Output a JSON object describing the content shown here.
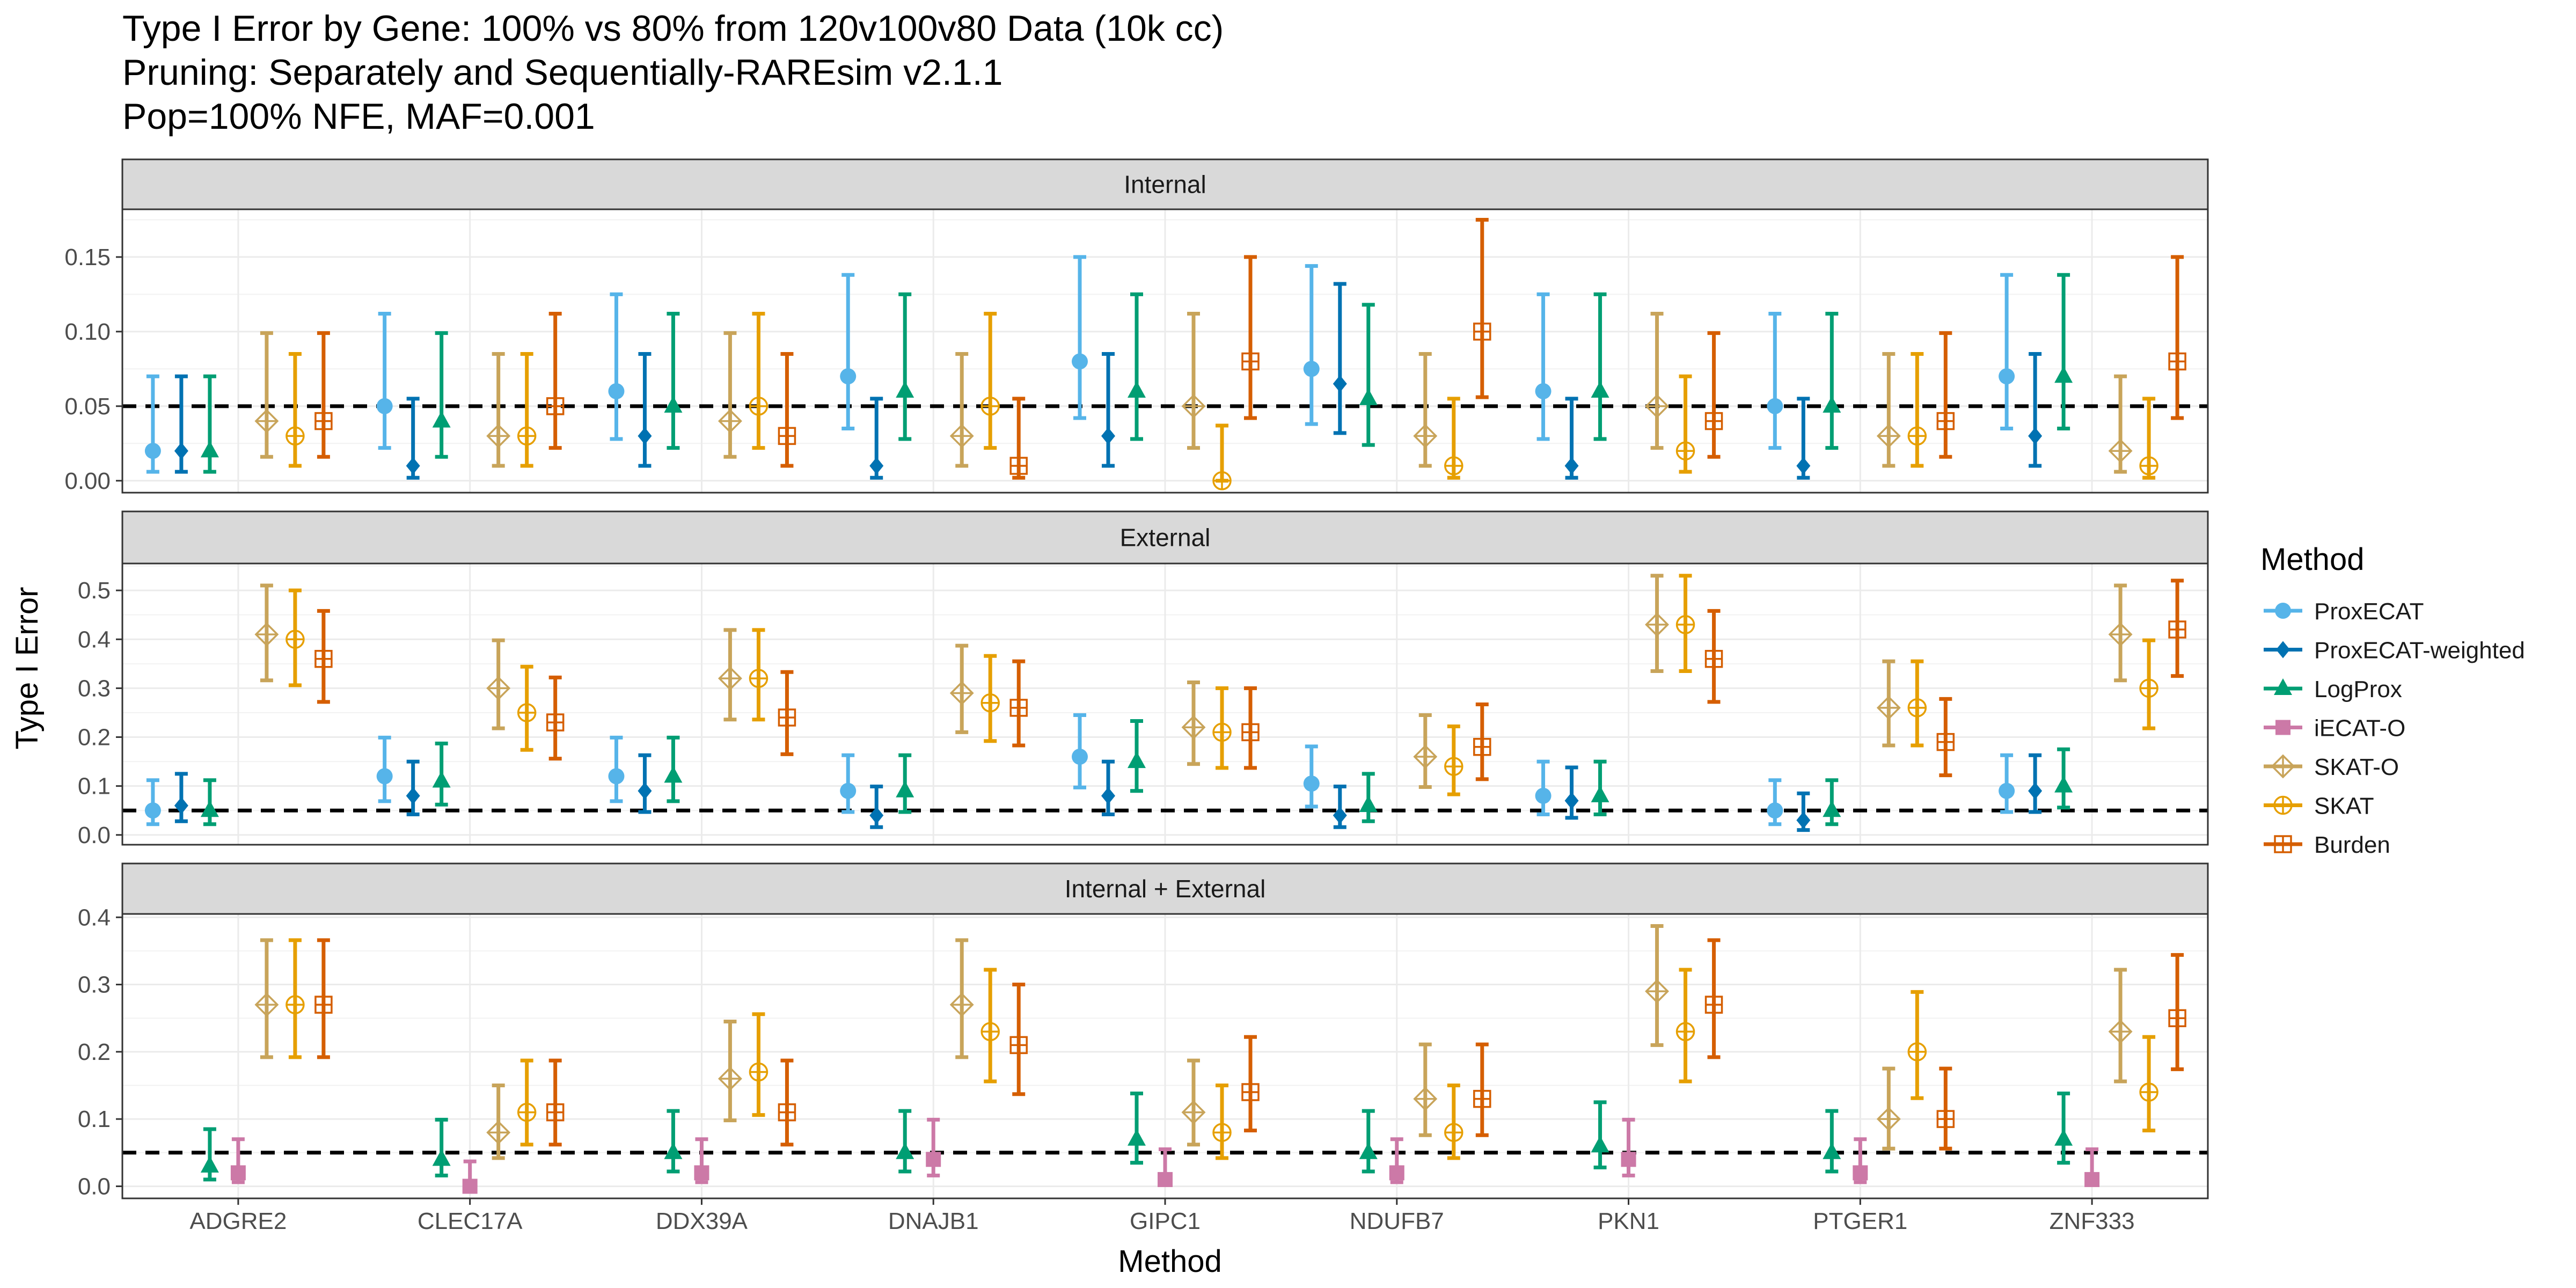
{
  "colors": {
    "ProxECAT": "#56B4E9",
    "ProxECAT-weighted": "#0072B2",
    "LogProx": "#009E73",
    "iECAT-O": "#CC79A7",
    "SKAT-O": "#C8A45A",
    "SKAT": "#E69F00",
    "Burden": "#D55E00",
    "strip_bg": "#D9D9D9",
    "panel_border": "#333333",
    "grid": "#EBEBEB"
  },
  "chart_data": {
    "type": "scatter",
    "title": [
      "Type I Error by Gene: 100% vs 80% from 120v100v80 Data (10k cc)",
      "Pruning: Separately and Sequentially-RAREsim v2.1.1",
      "Pop=100% NFE, MAF=0.001"
    ],
    "xlabel": "Method",
    "ylabel": "Type I Error",
    "reference_line": 0.05,
    "categories": [
      "ADGRE2",
      "CLEC17A",
      "DDX39A",
      "DNAJB1",
      "GIPC1",
      "NDUFB7",
      "PKN1",
      "PTGER1",
      "ZNF333"
    ],
    "legend": {
      "title": "Method",
      "position": "right",
      "items": [
        {
          "name": "ProxECAT",
          "shape": "circle"
        },
        {
          "name": "ProxECAT-weighted",
          "shape": "diamond"
        },
        {
          "name": "LogProx",
          "shape": "triangle"
        },
        {
          "name": "iECAT-O",
          "shape": "square"
        },
        {
          "name": "SKAT-O",
          "shape": "diamond-open"
        },
        {
          "name": "SKAT",
          "shape": "circle-plus"
        },
        {
          "name": "Burden",
          "shape": "square-plus"
        }
      ]
    },
    "panels": [
      {
        "label": "Internal",
        "ylim": [
          -0.008,
          0.182
        ],
        "yticks": [
          0.0,
          0.05,
          0.1,
          0.15
        ],
        "ytick_labels": [
          "0.00",
          "0.05",
          "0.10",
          "0.15"
        ],
        "series": [
          {
            "name": "ProxECAT",
            "values": [
              0.02,
              0.05,
              0.06,
              0.07,
              0.08,
              0.075,
              0.06,
              0.05,
              0.07
            ],
            "lower": [
              0.006,
              0.022,
              0.028,
              0.035,
              0.042,
              0.038,
              0.028,
              0.022,
              0.035
            ],
            "upper": [
              0.07,
              0.112,
              0.125,
              0.138,
              0.15,
              0.144,
              0.125,
              0.112,
              0.138
            ]
          },
          {
            "name": "ProxECAT-weighted",
            "values": [
              0.02,
              0.01,
              0.03,
              0.01,
              0.03,
              0.065,
              0.01,
              0.01,
              0.03
            ],
            "lower": [
              0.006,
              0.002,
              0.01,
              0.002,
              0.01,
              0.032,
              0.002,
              0.002,
              0.01
            ],
            "upper": [
              0.07,
              0.055,
              0.085,
              0.055,
              0.085,
              0.132,
              0.055,
              0.055,
              0.085
            ]
          },
          {
            "name": "LogProx",
            "values": [
              0.02,
              0.04,
              0.05,
              0.06,
              0.06,
              0.055,
              0.06,
              0.05,
              0.07
            ],
            "lower": [
              0.006,
              0.016,
              0.022,
              0.028,
              0.028,
              0.024,
              0.028,
              0.022,
              0.035
            ],
            "upper": [
              0.07,
              0.099,
              0.112,
              0.125,
              0.125,
              0.118,
              0.125,
              0.112,
              0.138
            ]
          },
          {
            "name": "SKAT-O",
            "values": [
              0.04,
              0.03,
              0.04,
              0.03,
              0.05,
              0.03,
              0.05,
              0.03,
              0.02
            ],
            "lower": [
              0.016,
              0.01,
              0.016,
              0.01,
              0.022,
              0.01,
              0.022,
              0.01,
              0.006
            ],
            "upper": [
              0.099,
              0.085,
              0.099,
              0.085,
              0.112,
              0.085,
              0.112,
              0.085,
              0.07
            ]
          },
          {
            "name": "SKAT",
            "values": [
              0.03,
              0.03,
              0.05,
              0.05,
              0.0,
              0.01,
              0.02,
              0.03,
              0.01
            ],
            "lower": [
              0.01,
              0.01,
              0.022,
              0.022,
              0.0,
              0.002,
              0.006,
              0.01,
              0.002
            ],
            "upper": [
              0.085,
              0.085,
              0.112,
              0.112,
              0.037,
              0.055,
              0.07,
              0.085,
              0.055
            ]
          },
          {
            "name": "Burden",
            "values": [
              0.04,
              0.05,
              0.03,
              0.01,
              0.08,
              0.1,
              0.04,
              0.04,
              0.08
            ],
            "lower": [
              0.016,
              0.022,
              0.01,
              0.002,
              0.042,
              0.056,
              0.016,
              0.016,
              0.042
            ],
            "upper": [
              0.099,
              0.112,
              0.085,
              0.055,
              0.15,
              0.175,
              0.099,
              0.099,
              0.15
            ]
          }
        ]
      },
      {
        "label": "External",
        "ylim": [
          -0.02,
          0.555
        ],
        "yticks": [
          0.0,
          0.1,
          0.2,
          0.3,
          0.4,
          0.5
        ],
        "ytick_labels": [
          "0.0",
          "0.1",
          "0.2",
          "0.3",
          "0.4",
          "0.5"
        ],
        "series": [
          {
            "name": "ProxECAT",
            "values": [
              0.05,
              0.12,
              0.12,
              0.09,
              0.16,
              0.105,
              0.08,
              0.05,
              0.09
            ],
            "lower": [
              0.022,
              0.069,
              0.069,
              0.047,
              0.097,
              0.058,
              0.042,
              0.022,
              0.047
            ],
            "upper": [
              0.112,
              0.199,
              0.199,
              0.163,
              0.245,
              0.181,
              0.15,
              0.112,
              0.163
            ]
          },
          {
            "name": "ProxECAT-weighted",
            "values": [
              0.06,
              0.08,
              0.09,
              0.04,
              0.08,
              0.04,
              0.07,
              0.03,
              0.09
            ],
            "lower": [
              0.028,
              0.042,
              0.047,
              0.016,
              0.042,
              0.016,
              0.035,
              0.01,
              0.047
            ],
            "upper": [
              0.125,
              0.15,
              0.163,
              0.099,
              0.15,
              0.099,
              0.138,
              0.085,
              0.163
            ]
          },
          {
            "name": "LogProx",
            "values": [
              0.05,
              0.11,
              0.12,
              0.09,
              0.15,
              0.06,
              0.08,
              0.05,
              0.1
            ],
            "lower": [
              0.022,
              0.062,
              0.069,
              0.047,
              0.09,
              0.028,
              0.042,
              0.022,
              0.056
            ],
            "upper": [
              0.112,
              0.187,
              0.199,
              0.163,
              0.233,
              0.125,
              0.15,
              0.112,
              0.175
            ]
          },
          {
            "name": "SKAT-O",
            "values": [
              0.41,
              0.3,
              0.32,
              0.29,
              0.22,
              0.16,
              0.43,
              0.26,
              0.41
            ],
            "lower": [
              0.316,
              0.218,
              0.236,
              0.21,
              0.145,
              0.098,
              0.335,
              0.183,
              0.316
            ],
            "upper": [
              0.51,
              0.398,
              0.419,
              0.387,
              0.312,
              0.245,
              0.53,
              0.355,
              0.51
            ]
          },
          {
            "name": "SKAT",
            "values": [
              0.4,
              0.25,
              0.32,
              0.27,
              0.21,
              0.14,
              0.43,
              0.26,
              0.3
            ],
            "lower": [
              0.306,
              0.174,
              0.236,
              0.192,
              0.137,
              0.083,
              0.335,
              0.183,
              0.218
            ],
            "upper": [
              0.5,
              0.344,
              0.419,
              0.366,
              0.3,
              0.222,
              0.53,
              0.355,
              0.398
            ]
          },
          {
            "name": "Burden",
            "values": [
              0.36,
              0.23,
              0.24,
              0.26,
              0.21,
              0.18,
              0.36,
              0.19,
              0.42
            ],
            "lower": [
              0.272,
              0.156,
              0.165,
              0.183,
              0.137,
              0.114,
              0.272,
              0.122,
              0.325
            ],
            "upper": [
              0.458,
              0.322,
              0.333,
              0.355,
              0.3,
              0.267,
              0.458,
              0.278,
              0.52
            ]
          }
        ]
      },
      {
        "label": "Internal + External",
        "ylim": [
          -0.018,
          0.405
        ],
        "yticks": [
          0.0,
          0.1,
          0.2,
          0.3,
          0.4
        ],
        "ytick_labels": [
          "0.0",
          "0.1",
          "0.2",
          "0.3",
          "0.4"
        ],
        "series": [
          {
            "name": "LogProx",
            "values": [
              0.03,
              0.04,
              0.05,
              0.05,
              0.07,
              0.05,
              0.06,
              0.05,
              0.07
            ],
            "lower": [
              0.01,
              0.016,
              0.022,
              0.022,
              0.035,
              0.022,
              0.028,
              0.022,
              0.035
            ],
            "upper": [
              0.085,
              0.099,
              0.112,
              0.112,
              0.138,
              0.112,
              0.125,
              0.112,
              0.138
            ]
          },
          {
            "name": "iECAT-O",
            "values": [
              0.02,
              0.0,
              0.02,
              0.04,
              0.01,
              0.02,
              0.04,
              0.02,
              0.01
            ],
            "lower": [
              0.006,
              0.0,
              0.006,
              0.016,
              0.002,
              0.006,
              0.016,
              0.006,
              0.002
            ],
            "upper": [
              0.07,
              0.037,
              0.07,
              0.099,
              0.055,
              0.07,
              0.099,
              0.07,
              0.055
            ]
          },
          {
            "name": "SKAT-O",
            "values": [
              0.27,
              0.08,
              0.16,
              0.27,
              0.11,
              0.13,
              0.29,
              0.1,
              0.23
            ],
            "lower": [
              0.192,
              0.042,
              0.098,
              0.192,
              0.062,
              0.076,
              0.21,
              0.056,
              0.156
            ],
            "upper": [
              0.366,
              0.15,
              0.245,
              0.366,
              0.187,
              0.211,
              0.387,
              0.175,
              0.322
            ]
          },
          {
            "name": "SKAT",
            "values": [
              0.27,
              0.11,
              0.17,
              0.23,
              0.08,
              0.08,
              0.23,
              0.2,
              0.14
            ],
            "lower": [
              0.192,
              0.062,
              0.106,
              0.156,
              0.042,
              0.042,
              0.156,
              0.131,
              0.083
            ],
            "upper": [
              0.366,
              0.187,
              0.256,
              0.322,
              0.15,
              0.15,
              0.322,
              0.289,
              0.222
            ]
          },
          {
            "name": "Burden",
            "values": [
              0.27,
              0.11,
              0.11,
              0.21,
              0.14,
              0.13,
              0.27,
              0.1,
              0.25
            ],
            "lower": [
              0.192,
              0.062,
              0.062,
              0.137,
              0.083,
              0.076,
              0.192,
              0.056,
              0.174
            ],
            "upper": [
              0.366,
              0.187,
              0.187,
              0.3,
              0.222,
              0.211,
              0.366,
              0.175,
              0.344
            ]
          }
        ]
      }
    ]
  }
}
